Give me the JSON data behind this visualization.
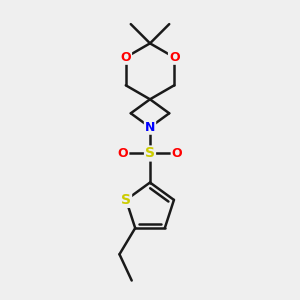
{
  "background_color": "#efefef",
  "bond_color": "#1a1a1a",
  "bond_width": 1.8,
  "atom_colors": {
    "O": "#ff0000",
    "N": "#0000ff",
    "S_sulfonyl": "#cccc00",
    "S_thiophene": "#cccc00",
    "C": "#1a1a1a"
  },
  "figsize": [
    3.0,
    3.0
  ],
  "dpi": 100,
  "xlim": [
    -2.5,
    2.5
  ],
  "ylim": [
    -5.0,
    3.5
  ]
}
